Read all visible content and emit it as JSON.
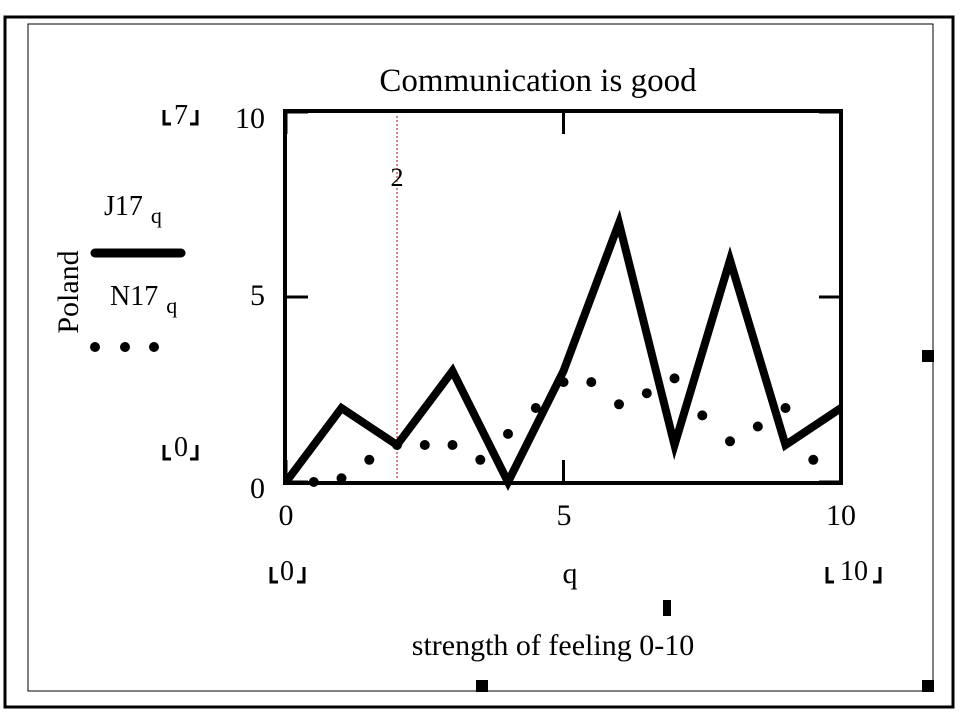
{
  "chart_data": {
    "type": "line",
    "title": "Communication is good",
    "xlabel": "q",
    "ylabel": "Poland",
    "caption": "strength of feeling  0-10",
    "xlim": [
      0,
      10
    ],
    "ylim": [
      0,
      10
    ],
    "x_ticks": [
      "0",
      "5",
      "10"
    ],
    "y_ticks": [
      "0",
      "5",
      "10"
    ],
    "x_range_markers": [
      "0",
      "10"
    ],
    "y_range_markers": [
      "0",
      "7"
    ],
    "vline": {
      "x": 2,
      "label": "2",
      "color": "#c00000"
    },
    "series": [
      {
        "name": "J17",
        "subscript": "q",
        "style": "solid",
        "color": "#000000",
        "x": [
          0,
          1,
          2,
          3,
          4,
          5,
          6,
          7,
          8,
          9,
          10
        ],
        "y": [
          0,
          2,
          1,
          3,
          0,
          3,
          7,
          1,
          6,
          1,
          2
        ]
      },
      {
        "name": "N17",
        "subscript": "q",
        "style": "dotted",
        "color": "#000000",
        "x": [
          0.5,
          1,
          1.5,
          2,
          2.5,
          3,
          3.5,
          4,
          4.5,
          5,
          5.5,
          6,
          6.5,
          7,
          7.5,
          8,
          8.5,
          9,
          9.5
        ],
        "y": [
          0,
          0.1,
          0.6,
          1,
          1,
          1,
          0.6,
          1.3,
          2,
          2.7,
          2.7,
          2.1,
          2.4,
          2.8,
          1.8,
          1.1,
          1.5,
          2,
          0.6
        ]
      }
    ]
  }
}
